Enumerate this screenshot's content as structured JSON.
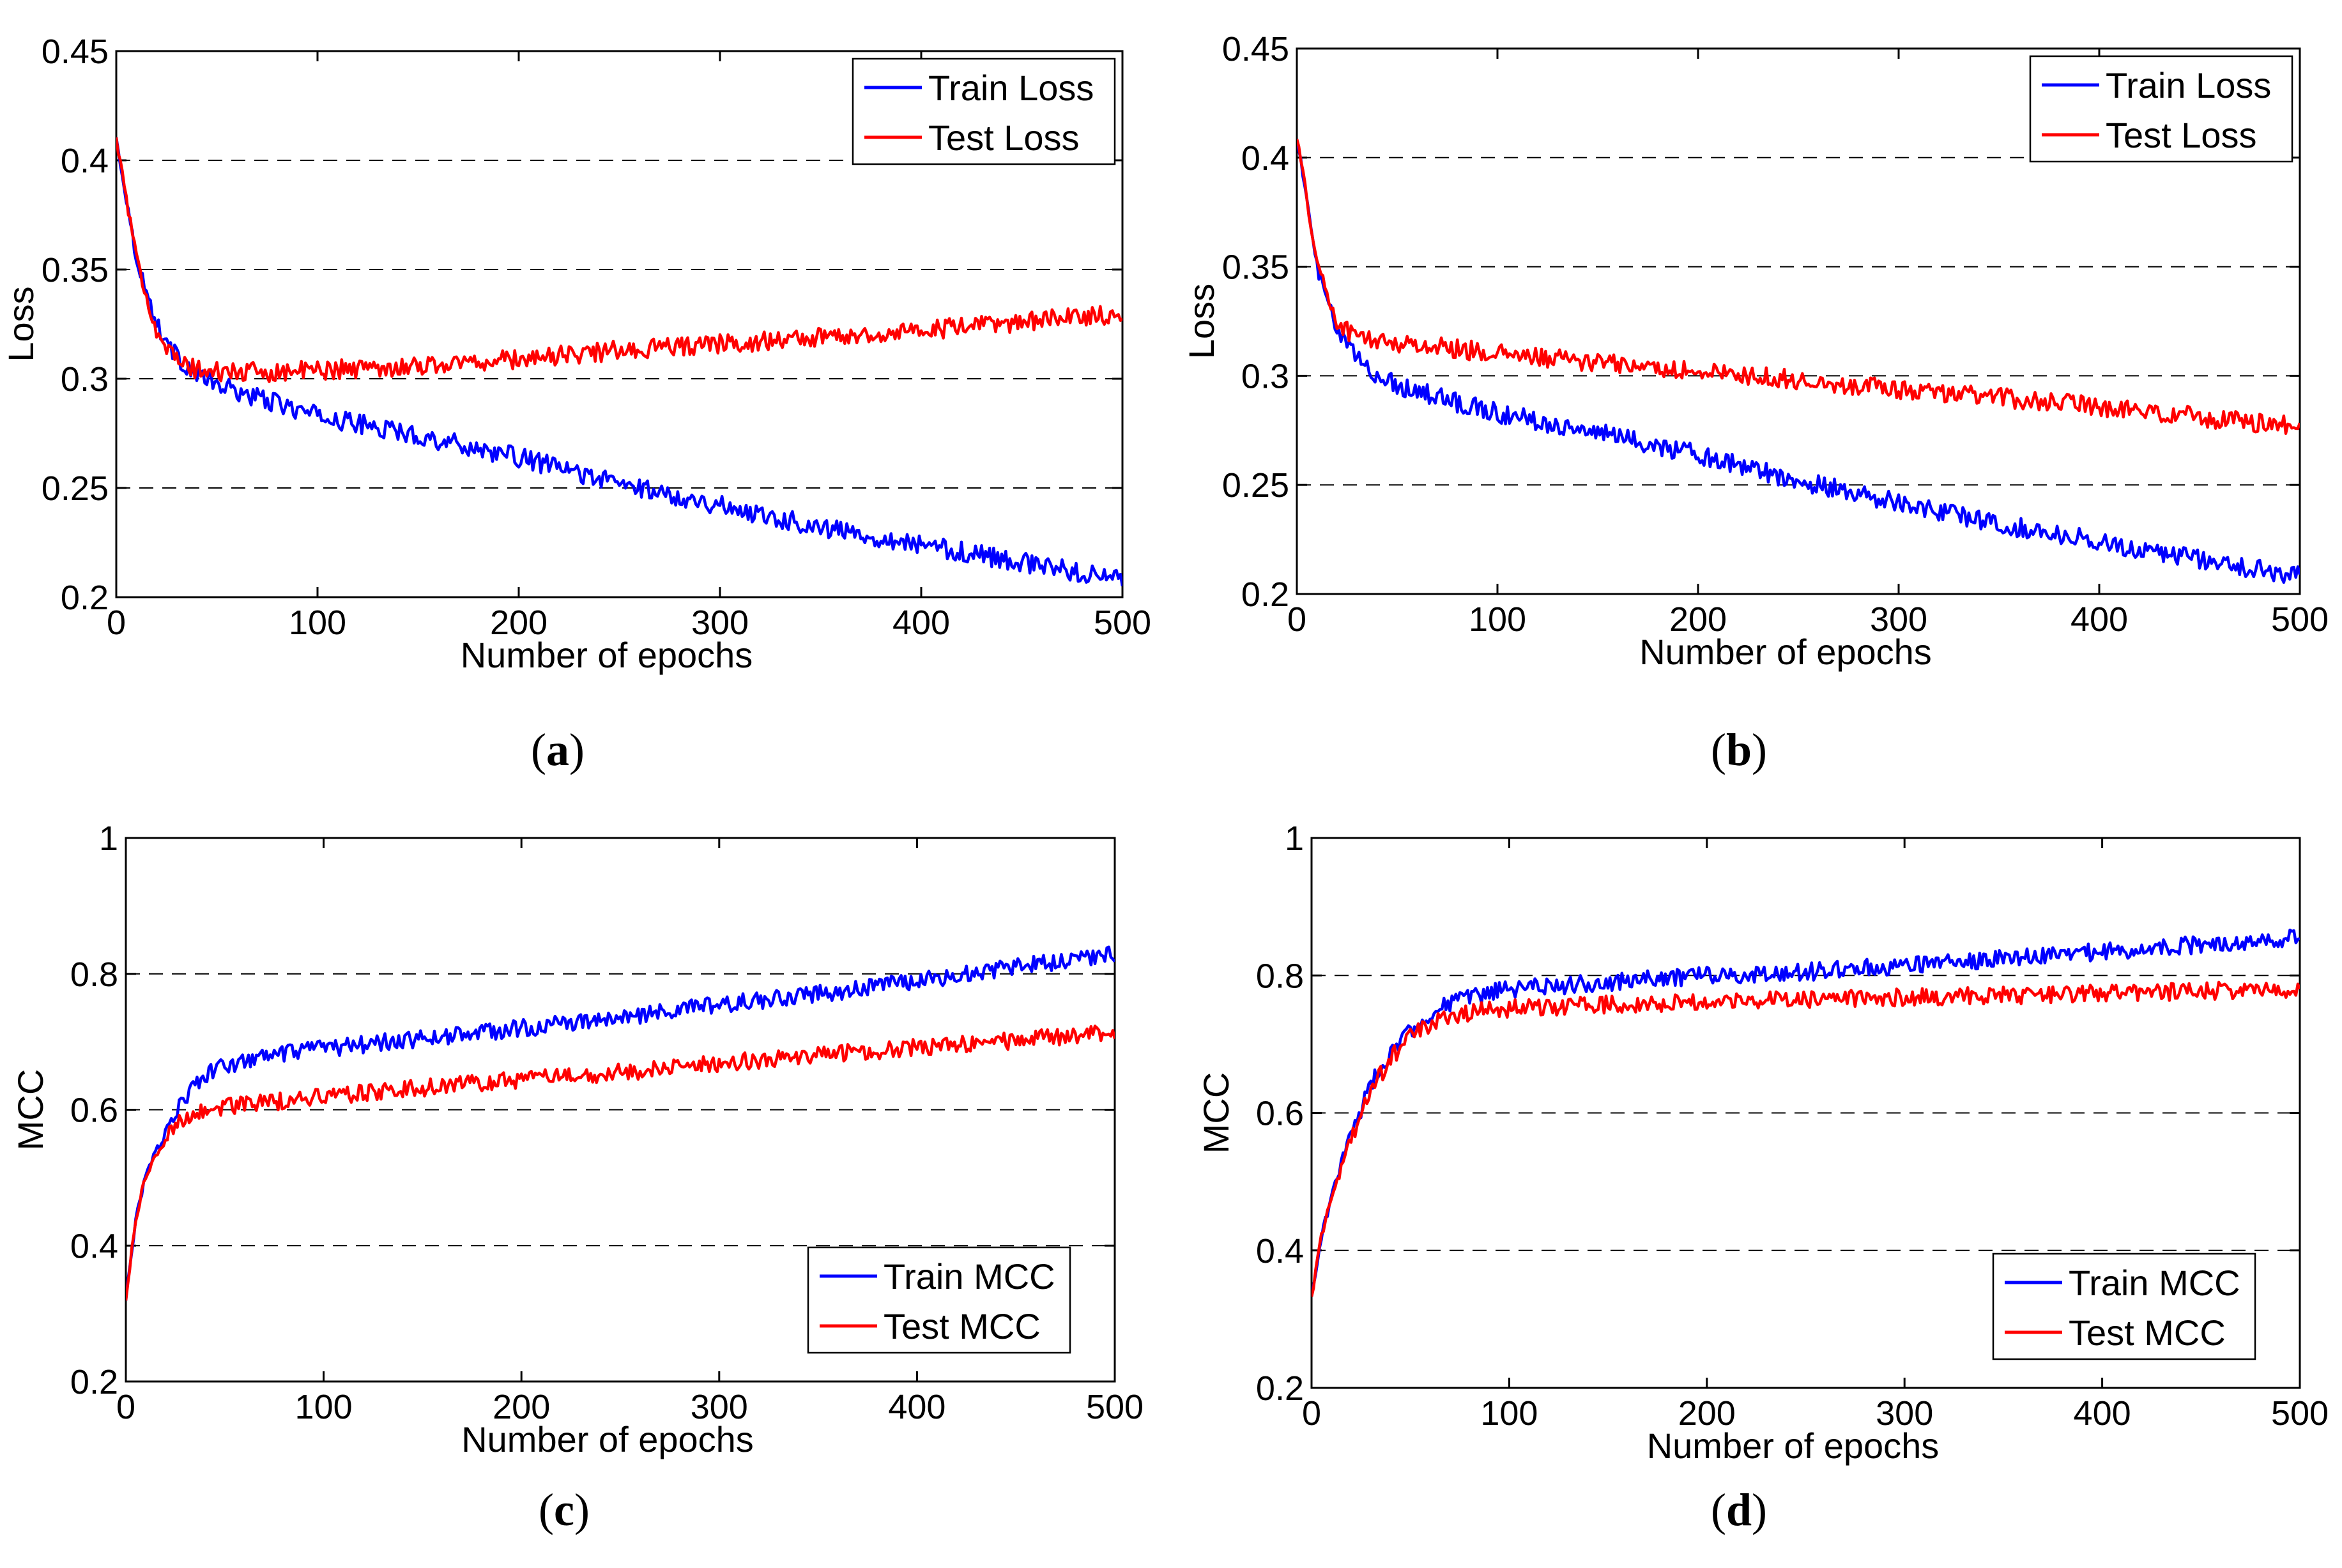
{
  "figure": {
    "panels": [
      {
        "id": "a",
        "caption_open": "(",
        "caption_letter": "a",
        "caption_close": ")"
      },
      {
        "id": "b",
        "caption_open": "(",
        "caption_letter": "b",
        "caption_close": ")"
      },
      {
        "id": "c",
        "caption_open": "(",
        "caption_letter": "c",
        "caption_close": ")"
      },
      {
        "id": "d",
        "caption_open": "(",
        "caption_letter": "d",
        "caption_close": ")"
      }
    ]
  },
  "colors": {
    "train": "#0000ff",
    "test": "#ff0000",
    "grid": "#000000"
  },
  "chart_data": [
    {
      "type": "line",
      "panel": "a",
      "title": "",
      "xlabel": "Number of epochs",
      "ylabel": "Loss",
      "xlim": [
        0,
        500
      ],
      "ylim": [
        0.2,
        0.45
      ],
      "xticks": [
        0,
        100,
        200,
        300,
        400,
        500
      ],
      "xtick_labels": [
        "0",
        "100",
        "200",
        "300",
        "400",
        "500"
      ],
      "yticks": [
        0.2,
        0.25,
        0.3,
        0.35,
        0.4,
        0.45
      ],
      "ytick_labels": [
        "0.2",
        "0.25",
        "0.3",
        "0.35",
        "0.4",
        "0.45"
      ],
      "grid_y": [
        0.25,
        0.3,
        0.35,
        0.4
      ],
      "legend": "top-right",
      "x": [
        0,
        10,
        20,
        30,
        40,
        50,
        75,
        100,
        150,
        200,
        250,
        300,
        350,
        400,
        450,
        500
      ],
      "series": [
        {
          "name": "Train Loss",
          "color": "#0000ff",
          "values": [
            0.41,
            0.355,
            0.325,
            0.31,
            0.302,
            0.297,
            0.29,
            0.283,
            0.274,
            0.264,
            0.252,
            0.242,
            0.232,
            0.224,
            0.216,
            0.208
          ]
        },
        {
          "name": "Test Loss",
          "color": "#ff0000",
          "values": [
            0.41,
            0.355,
            0.322,
            0.308,
            0.304,
            0.303,
            0.303,
            0.304,
            0.306,
            0.309,
            0.313,
            0.316,
            0.319,
            0.322,
            0.326,
            0.33
          ]
        }
      ]
    },
    {
      "type": "line",
      "panel": "b",
      "title": "",
      "xlabel": "Number of epochs",
      "ylabel": "Loss",
      "xlim": [
        0,
        500
      ],
      "ylim": [
        0.2,
        0.45
      ],
      "xticks": [
        0,
        100,
        200,
        300,
        400,
        500
      ],
      "xtick_labels": [
        "0",
        "100",
        "200",
        "300",
        "400",
        "500"
      ],
      "yticks": [
        0.2,
        0.25,
        0.3,
        0.35,
        0.4,
        0.45
      ],
      "ytick_labels": [
        "0.2",
        "0.25",
        "0.3",
        "0.35",
        "0.4",
        "0.45"
      ],
      "grid_y": [
        0.25,
        0.3,
        0.35,
        0.4
      ],
      "legend": "top-right",
      "x": [
        0,
        10,
        20,
        30,
        40,
        50,
        75,
        100,
        150,
        200,
        250,
        300,
        350,
        400,
        450,
        500
      ],
      "series": [
        {
          "name": "Train Loss",
          "color": "#0000ff",
          "values": [
            0.41,
            0.35,
            0.32,
            0.308,
            0.3,
            0.296,
            0.289,
            0.283,
            0.274,
            0.264,
            0.252,
            0.242,
            0.232,
            0.224,
            0.216,
            0.208
          ]
        },
        {
          "name": "Test Loss",
          "color": "#ff0000",
          "values": [
            0.41,
            0.352,
            0.324,
            0.318,
            0.316,
            0.315,
            0.313,
            0.31,
            0.306,
            0.302,
            0.298,
            0.294,
            0.29,
            0.286,
            0.281,
            0.277
          ]
        }
      ]
    },
    {
      "type": "line",
      "panel": "c",
      "title": "",
      "xlabel": "Number of epochs",
      "ylabel": "MCC",
      "xlim": [
        0,
        500
      ],
      "ylim": [
        0.2,
        1
      ],
      "xticks": [
        0,
        100,
        200,
        300,
        400,
        500
      ],
      "xtick_labels": [
        "0",
        "100",
        "200",
        "300",
        "400",
        "500"
      ],
      "yticks": [
        0.2,
        0.4,
        0.6,
        0.8,
        1
      ],
      "ytick_labels": [
        "0.2",
        "0.4",
        "0.6",
        "0.8",
        "1"
      ],
      "grid_y": [
        0.4,
        0.6,
        0.8
      ],
      "legend": "bottom-right",
      "x": [
        0,
        5,
        10,
        20,
        30,
        40,
        50,
        75,
        100,
        150,
        200,
        250,
        300,
        350,
        400,
        450,
        500
      ],
      "series": [
        {
          "name": "Train MCC",
          "color": "#0000ff",
          "values": [
            0.32,
            0.44,
            0.5,
            0.57,
            0.62,
            0.65,
            0.665,
            0.68,
            0.69,
            0.705,
            0.72,
            0.735,
            0.755,
            0.77,
            0.79,
            0.81,
            0.83
          ]
        },
        {
          "name": "Test MCC",
          "color": "#ff0000",
          "values": [
            0.32,
            0.44,
            0.5,
            0.56,
            0.59,
            0.6,
            0.605,
            0.612,
            0.62,
            0.632,
            0.645,
            0.655,
            0.668,
            0.68,
            0.692,
            0.702,
            0.715
          ]
        }
      ]
    },
    {
      "type": "line",
      "panel": "d",
      "title": "",
      "xlabel": "Number of epochs",
      "ylabel": "MCC",
      "xlim": [
        0,
        500
      ],
      "ylim": [
        0.2,
        1
      ],
      "xticks": [
        0,
        100,
        200,
        300,
        400,
        500
      ],
      "xtick_labels": [
        "0",
        "100",
        "200",
        "300",
        "400",
        "500"
      ],
      "yticks": [
        0.2,
        0.4,
        0.6,
        0.8,
        1
      ],
      "ytick_labels": [
        "0.2",
        "0.4",
        "0.6",
        "0.8",
        "1"
      ],
      "grid_y": [
        0.4,
        0.6,
        0.8
      ],
      "legend": "bottom-right",
      "x": [
        0,
        5,
        10,
        20,
        30,
        40,
        50,
        60,
        75,
        100,
        150,
        200,
        250,
        300,
        350,
        400,
        450,
        500
      ],
      "series": [
        {
          "name": "Train MCC",
          "color": "#0000ff",
          "values": [
            0.33,
            0.42,
            0.48,
            0.57,
            0.64,
            0.69,
            0.72,
            0.745,
            0.765,
            0.78,
            0.79,
            0.8,
            0.805,
            0.815,
            0.825,
            0.835,
            0.845,
            0.855
          ]
        },
        {
          "name": "Test MCC",
          "color": "#ff0000",
          "values": [
            0.33,
            0.42,
            0.48,
            0.56,
            0.63,
            0.68,
            0.71,
            0.73,
            0.745,
            0.752,
            0.758,
            0.762,
            0.765,
            0.768,
            0.771,
            0.774,
            0.777,
            0.78
          ]
        }
      ]
    }
  ]
}
